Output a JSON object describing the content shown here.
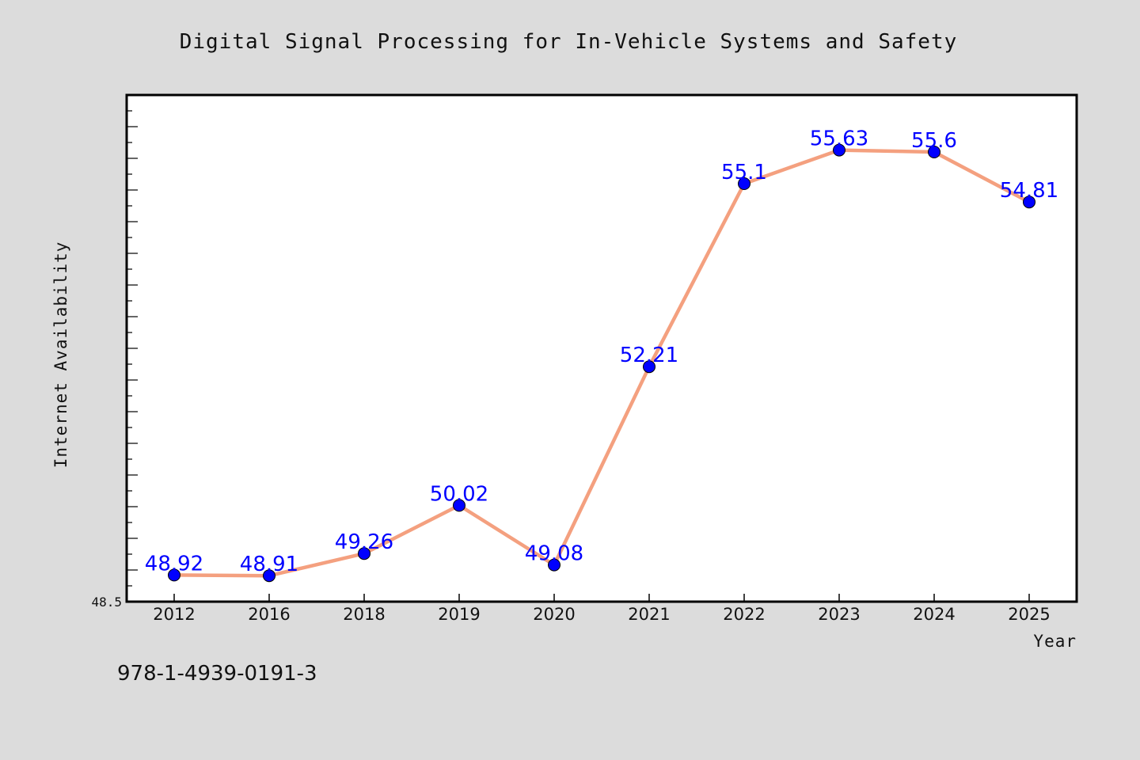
{
  "chart_data": {
    "type": "line",
    "title": "Digital Signal Processing for In-Vehicle Systems and Safety",
    "xlabel": "Year",
    "ylabel": "Internet Availability",
    "categories": [
      "2012",
      "2016",
      "2018",
      "2019",
      "2020",
      "2021",
      "2022",
      "2023",
      "2024",
      "2025"
    ],
    "series": [
      {
        "values": [
          48.92,
          48.91,
          49.26,
          50.02,
          49.08,
          52.21,
          55.1,
          55.63,
          55.6,
          54.81
        ],
        "labels": [
          "48.92",
          "48.91",
          "49.26",
          "50.02",
          "49.08",
          "52.21",
          "55.1",
          "55.63",
          "55.6",
          "54.81"
        ],
        "line_color": "#f4a07f",
        "marker_color": "#0000ff"
      }
    ],
    "ylim": [
      48.5,
      56.5
    ],
    "y_min_label": "48.5",
    "grid": false,
    "legend": "none"
  },
  "footer": {
    "isbn": "978-1-4939-0191-3"
  },
  "colors": {
    "background": "#dcdcdc",
    "plot_area": "#ffffff",
    "line": "#f4a07f",
    "marker": "#0000ff",
    "label": "#0000ff"
  }
}
